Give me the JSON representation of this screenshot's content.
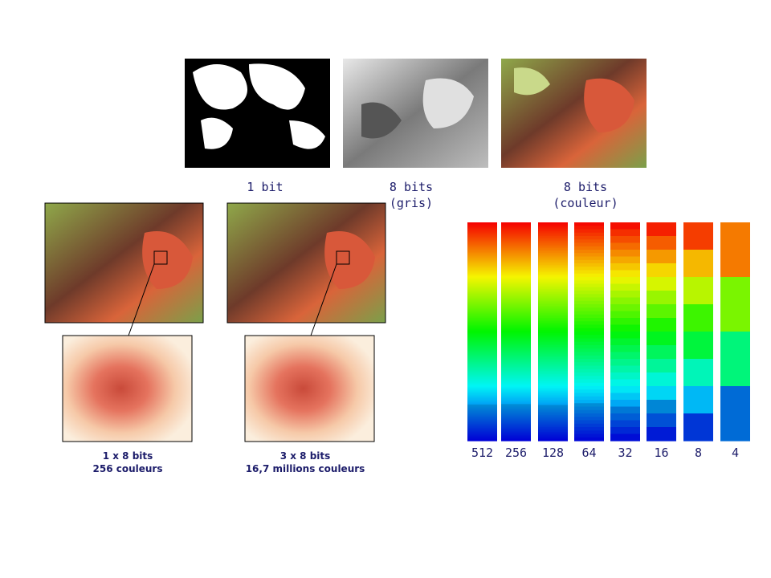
{
  "top_labels": [
    {
      "lines": [
        "1 bit"
      ]
    },
    {
      "lines": [
        "8 bits",
        "(gris)"
      ]
    },
    {
      "lines": [
        "8 bits",
        "(couleur)"
      ]
    }
  ],
  "zoom_captions": [
    {
      "lines": [
        "1 x 8 bits",
        "256 couleurs"
      ]
    },
    {
      "lines": [
        "3 x 8 bits",
        "16,7 millions couleurs"
      ]
    }
  ],
  "gradient_levels": [
    512,
    256,
    128,
    64,
    32,
    16,
    8,
    4
  ]
}
